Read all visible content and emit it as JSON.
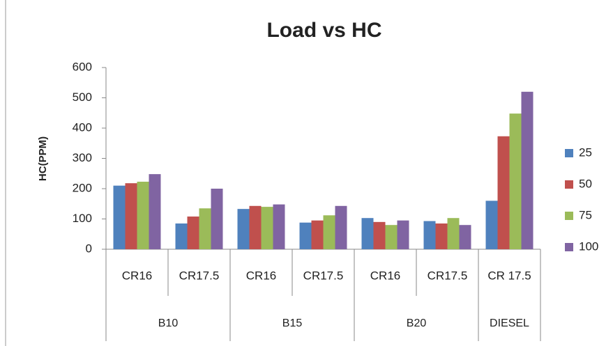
{
  "chart_data": {
    "type": "bar",
    "title": "Load vs HC",
    "y_label": "HC(PPM)",
    "groups": [
      {
        "name": "B10",
        "categories": [
          "CR16",
          "CR17.5"
        ]
      },
      {
        "name": "B15",
        "categories": [
          "CR16",
          "CR17.5"
        ]
      },
      {
        "name": "B20",
        "categories": [
          "CR16",
          "CR17.5"
        ]
      },
      {
        "name": "DIESEL",
        "categories": [
          "CR 17.5"
        ]
      }
    ],
    "series": [
      {
        "name": "25",
        "color": "#4f81bd",
        "values": [
          210,
          85,
          133,
          88,
          103,
          93,
          160
        ]
      },
      {
        "name": "50",
        "color": "#c0504d",
        "values": [
          218,
          108,
          143,
          95,
          90,
          85,
          373
        ]
      },
      {
        "name": "75",
        "color": "#9bbb59",
        "values": [
          223,
          135,
          140,
          112,
          80,
          103,
          448
        ]
      },
      {
        "name": "100",
        "color": "#8064a2",
        "values": [
          248,
          200,
          148,
          143,
          95,
          80,
          520
        ]
      }
    ],
    "ylim": [
      0,
      600
    ],
    "yticks": [
      0,
      100,
      200,
      300,
      400,
      500,
      600
    ],
    "grid": false,
    "legend": "right"
  }
}
